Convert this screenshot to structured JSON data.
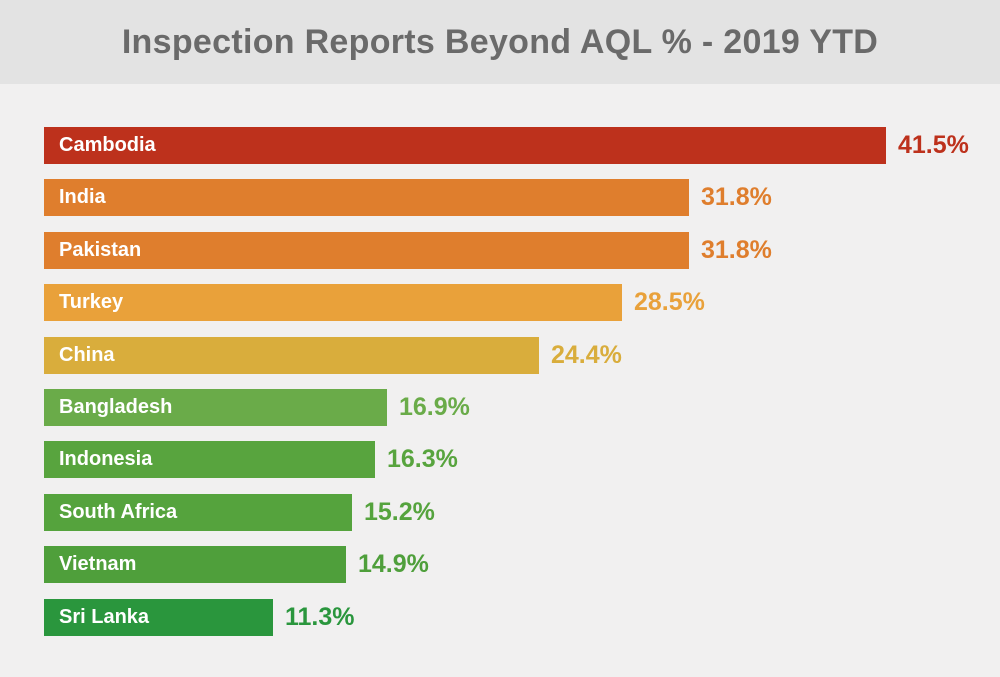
{
  "chart_data": {
    "type": "bar",
    "orientation": "horizontal",
    "title": "Inspection Reports Beyond AQL % - 2019 YTD",
    "xlabel": "",
    "ylabel": "",
    "unit": "%",
    "grid": false,
    "categories": [
      "Cambodia",
      "India",
      "Pakistan",
      "Turkey",
      "China",
      "Bangladesh",
      "Indonesia",
      "South Africa",
      "Vietnam",
      "Sri Lanka"
    ],
    "values": [
      41.5,
      31.8,
      31.8,
      28.5,
      24.4,
      16.9,
      16.3,
      15.2,
      14.9,
      11.3
    ],
    "value_labels": [
      "41.5%",
      "31.8%",
      "31.8%",
      "28.5%",
      "24.4%",
      "16.9%",
      "16.3%",
      "15.2%",
      "14.9%",
      "11.3%"
    ],
    "colors": [
      "#bd311c",
      "#df7e2d",
      "#df7e2d",
      "#e9a13a",
      "#d9ad3c",
      "#6aab49",
      "#58a43e",
      "#55a33d",
      "#4f9f3b",
      "#2a963d"
    ],
    "xlim": [
      0,
      41.5
    ]
  },
  "header": {
    "background": "#e3e3e3"
  }
}
